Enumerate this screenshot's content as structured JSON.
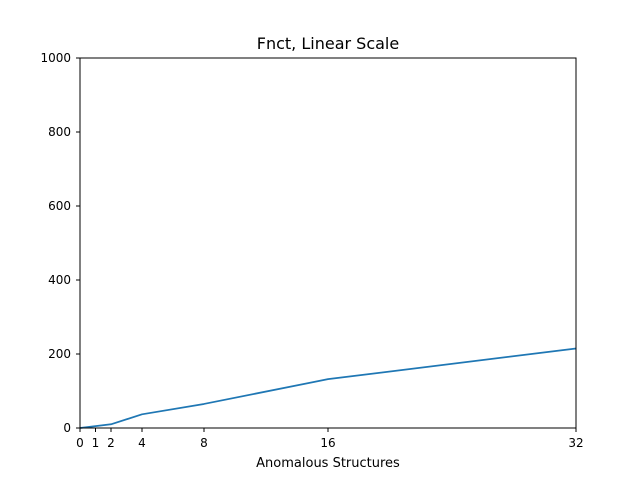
{
  "colors": {
    "line": "#1f77b4",
    "axes": "#000000",
    "background": "#ffffff"
  },
  "chart_data": {
    "type": "line",
    "title": "Fnct, Linear Scale",
    "xlabel": "Anomalous Structures",
    "ylabel": "",
    "xlim": [
      0,
      32
    ],
    "ylim": [
      0,
      1000
    ],
    "xticks": [
      0,
      1,
      2,
      4,
      8,
      16,
      32
    ],
    "xtick_labels": [
      "0",
      "1",
      "2",
      "4",
      "8",
      "16",
      "32"
    ],
    "yticks": [
      0,
      200,
      400,
      600,
      800,
      1000
    ],
    "ytick_labels": [
      "0",
      "200",
      "400",
      "600",
      "800",
      "1000"
    ],
    "grid": false,
    "series": [
      {
        "x": [
          0,
          1,
          2,
          4,
          8,
          16,
          32
        ],
        "values": [
          0,
          5,
          10,
          37,
          65,
          132,
          215
        ]
      }
    ]
  }
}
